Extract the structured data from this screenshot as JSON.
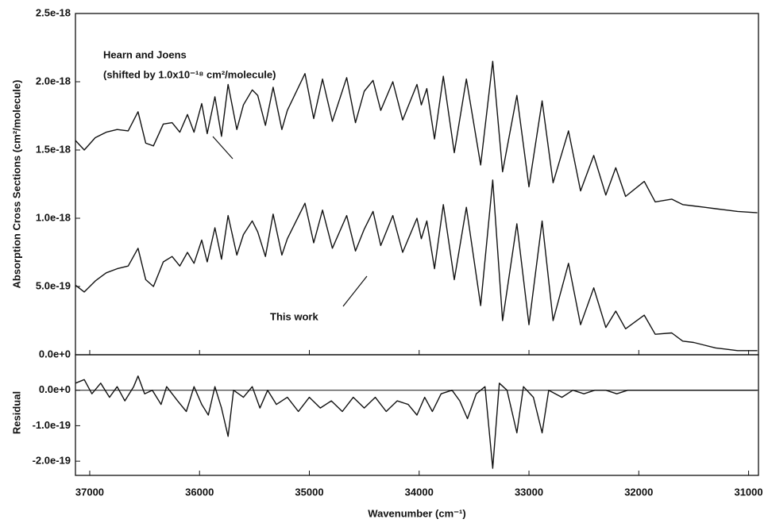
{
  "chart_data": [
    {
      "type": "line",
      "y_label": "Absorption Cross Sections (cm²/molecule)",
      "annotations": [
        "Hearn and Joens",
        "(shifted by 1.0x10⁻¹⁸ cm²/molecule)",
        "This work"
      ],
      "xlim": [
        37130,
        30910
      ],
      "ylim": [
        0,
        2.5e-18
      ],
      "yticks": [
        {
          "value": 0,
          "label": "0.0e+0"
        },
        {
          "value": 5e-19,
          "label": "5.0e-19"
        },
        {
          "value": 1e-18,
          "label": "1.0e-18"
        },
        {
          "value": 1.5e-18,
          "label": "1.5e-18"
        },
        {
          "value": 2e-18,
          "label": "2.0e-18"
        },
        {
          "value": 2.5e-18,
          "label": "2.5e-18"
        }
      ],
      "x": [
        37130,
        37050,
        36950,
        36850,
        36750,
        36650,
        36560,
        36490,
        36420,
        36330,
        36250,
        36180,
        36110,
        36050,
        35980,
        35930,
        35860,
        35800,
        35740,
        35660,
        35600,
        35520,
        35470,
        35400,
        35330,
        35250,
        35200,
        35040,
        34960,
        34880,
        34790,
        34660,
        34580,
        34500,
        34420,
        34350,
        34240,
        34150,
        34020,
        33980,
        33930,
        33860,
        33780,
        33680,
        33570,
        33440,
        33330,
        33240,
        33110,
        33000,
        32880,
        32780,
        32640,
        32530,
        32410,
        32300,
        32210,
        32120,
        31950,
        31850,
        31700,
        31600,
        31500,
        31400,
        31300,
        31200,
        31100,
        30920
      ],
      "series": [
        {
          "color": "#111111",
          "values": [
            1.57e-18,
            1.5e-18,
            1.59e-18,
            1.63e-18,
            1.65e-18,
            1.64e-18,
            1.78e-18,
            1.55e-18,
            1.53e-18,
            1.69e-18,
            1.7e-18,
            1.63e-18,
            1.76e-18,
            1.63e-18,
            1.84e-18,
            1.62e-18,
            1.89e-18,
            1.6e-18,
            1.98e-18,
            1.65e-18,
            1.83e-18,
            1.94e-18,
            1.9e-18,
            1.68e-18,
            1.96e-18,
            1.65e-18,
            1.79e-18,
            2.06e-18,
            1.73e-18,
            2.02e-18,
            1.71e-18,
            2.03e-18,
            1.7e-18,
            1.93e-18,
            2.01e-18,
            1.79e-18,
            2e-18,
            1.72e-18,
            1.98e-18,
            1.83e-18,
            1.95e-18,
            1.58e-18,
            2.04e-18,
            1.48e-18,
            2.02e-18,
            1.39e-18,
            2.15e-18,
            1.34e-18,
            1.9e-18,
            1.23e-18,
            1.86e-18,
            1.26e-18,
            1.64e-18,
            1.2e-18,
            1.46e-18,
            1.17e-18,
            1.37e-18,
            1.16e-18,
            1.27e-18,
            1.12e-18,
            1.14e-18,
            1.1e-18,
            1.09e-18,
            1.08e-18,
            1.07e-18,
            1.06e-18,
            1.05e-18,
            1.04e-18
          ]
        },
        {
          "color": "#111111",
          "values": [
            5.1e-19,
            4.6e-19,
            5.4e-19,
            6e-19,
            6.3e-19,
            6.5e-19,
            7.8e-19,
            5.5e-19,
            5e-19,
            6.8e-19,
            7.2e-19,
            6.5e-19,
            7.5e-19,
            6.7e-19,
            8.4e-19,
            6.8e-19,
            9.3e-19,
            7e-19,
            1.02e-18,
            7.3e-19,
            8.8e-19,
            9.8e-19,
            9e-19,
            7.2e-19,
            1.03e-18,
            7.3e-19,
            8.5e-19,
            1.11e-18,
            8.2e-19,
            1.06e-18,
            7.8e-19,
            1.02e-18,
            7.6e-19,
            9.2e-19,
            1.05e-18,
            8e-19,
            1.02e-18,
            7.5e-19,
            1e-18,
            8.5e-19,
            9.8e-19,
            6.3e-19,
            1.1e-18,
            5.5e-19,
            1.08e-18,
            3.6e-19,
            1.28e-18,
            2.5e-19,
            9.6e-19,
            2.2e-19,
            9.8e-19,
            2.5e-19,
            6.7e-19,
            2.2e-19,
            4.9e-19,
            2e-19,
            3.2e-19,
            1.9e-19,
            2.9e-19,
            1.5e-19,
            1.6e-19,
            1e-19,
            9e-20,
            7e-20,
            5e-20,
            4e-20,
            3e-20,
            3e-20
          ]
        }
      ]
    },
    {
      "type": "line",
      "y_label": "Residual",
      "x_label": "Wavenumber (cm⁻¹)",
      "xlim": [
        37130,
        30910
      ],
      "xticks": [
        37000,
        36000,
        35000,
        34000,
        33000,
        32000,
        31000
      ],
      "ylim": [
        -2.4e-19,
        1e-19
      ],
      "yticks": [
        {
          "value": 0,
          "label": "0.0e+0"
        },
        {
          "value": -1e-19,
          "label": "-1.0e-19"
        },
        {
          "value": -2e-19,
          "label": "-2.0e-19"
        }
      ],
      "x": [
        37130,
        37050,
        36980,
        36900,
        36820,
        36750,
        36680,
        36600,
        36560,
        36500,
        36430,
        36350,
        36300,
        36200,
        36120,
        36050,
        35980,
        35920,
        35860,
        35800,
        35740,
        35690,
        35600,
        35520,
        35450,
        35380,
        35300,
        35200,
        35100,
        35000,
        34900,
        34800,
        34700,
        34600,
        34500,
        34400,
        34300,
        34200,
        34100,
        34020,
        33950,
        33880,
        33800,
        33700,
        33630,
        33560,
        33480,
        33400,
        33330,
        33270,
        33200,
        33110,
        33050,
        32960,
        32880,
        32820,
        32700,
        32600,
        32500,
        32400,
        32300,
        32200,
        32100,
        32000,
        31800,
        31500,
        31200,
        30920
      ],
      "series": [
        {
          "color": "#111111",
          "values": [
            2e-20,
            3e-20,
            -1e-20,
            2e-20,
            -2e-20,
            1e-20,
            -3e-20,
            1e-20,
            4e-20,
            -1e-20,
            0,
            -4e-20,
            1e-20,
            -3e-20,
            -6e-20,
            1e-20,
            -4e-20,
            -7e-20,
            1e-20,
            -5e-20,
            -1.3e-19,
            0,
            -2e-20,
            1e-20,
            -5e-20,
            0,
            -4e-20,
            -2e-20,
            -6e-20,
            -2e-20,
            -5e-20,
            -3e-20,
            -6e-20,
            -2e-20,
            -5e-20,
            -2e-20,
            -6e-20,
            -3e-20,
            -4e-20,
            -7e-20,
            -2e-20,
            -6e-20,
            -1e-20,
            0,
            -3e-20,
            -8e-20,
            -1e-20,
            1e-20,
            -2.2e-19,
            2e-20,
            0,
            -1.2e-19,
            1e-20,
            -2e-20,
            -1.2e-19,
            0,
            -2e-20,
            0,
            -1e-20,
            0,
            0,
            -1e-20,
            0,
            0,
            0,
            0,
            0,
            0
          ]
        }
      ]
    }
  ]
}
